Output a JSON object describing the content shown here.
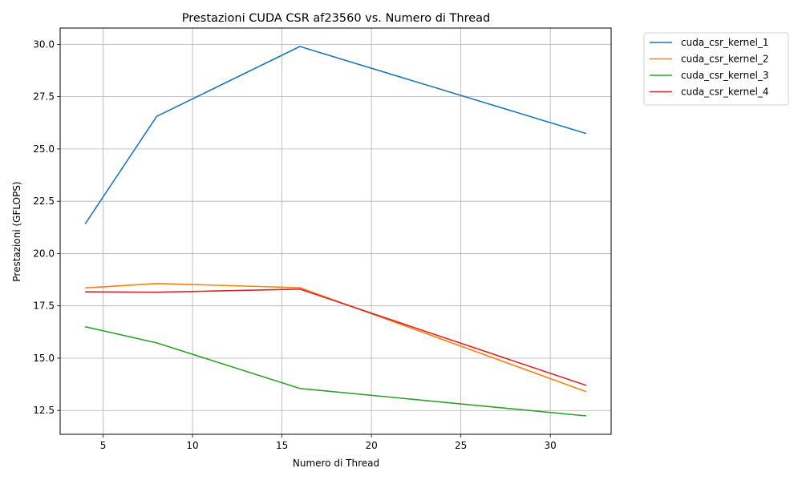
{
  "chart_data": {
    "type": "line",
    "title": "Prestazioni CUDA CSR af23560 vs. Numero di Thread",
    "xlabel": "Numero di Thread",
    "ylabel": "Prestazioni (GFLOPS)",
    "x": [
      4,
      8,
      16,
      32
    ],
    "xlim": [
      2.6,
      33.4
    ],
    "ylim": [
      11.36,
      30.78
    ],
    "xticks": [
      5,
      10,
      15,
      20,
      25,
      30
    ],
    "xtick_labels": [
      "5",
      "10",
      "15",
      "20",
      "25",
      "30"
    ],
    "yticks": [
      12.5,
      15.0,
      17.5,
      20.0,
      22.5,
      25.0,
      27.5,
      30.0
    ],
    "ytick_labels": [
      "12.5",
      "15.0",
      "17.5",
      "20.0",
      "22.5",
      "25.0",
      "27.5",
      "30.0"
    ],
    "grid": true,
    "legend_position": "outside-top-right",
    "series": [
      {
        "name": "cuda_csr_kernel_1",
        "color": "#1f77b4",
        "values": [
          21.42,
          26.56,
          29.9,
          25.74
        ]
      },
      {
        "name": "cuda_csr_kernel_2",
        "color": "#ff7f0e",
        "values": [
          18.36,
          18.57,
          18.37,
          13.4
        ]
      },
      {
        "name": "cuda_csr_kernel_3",
        "color": "#2ca02c",
        "values": [
          16.5,
          15.73,
          13.55,
          12.24
        ]
      },
      {
        "name": "cuda_csr_kernel_4",
        "color": "#d62728",
        "values": [
          18.17,
          18.15,
          18.3,
          13.7
        ]
      }
    ]
  }
}
